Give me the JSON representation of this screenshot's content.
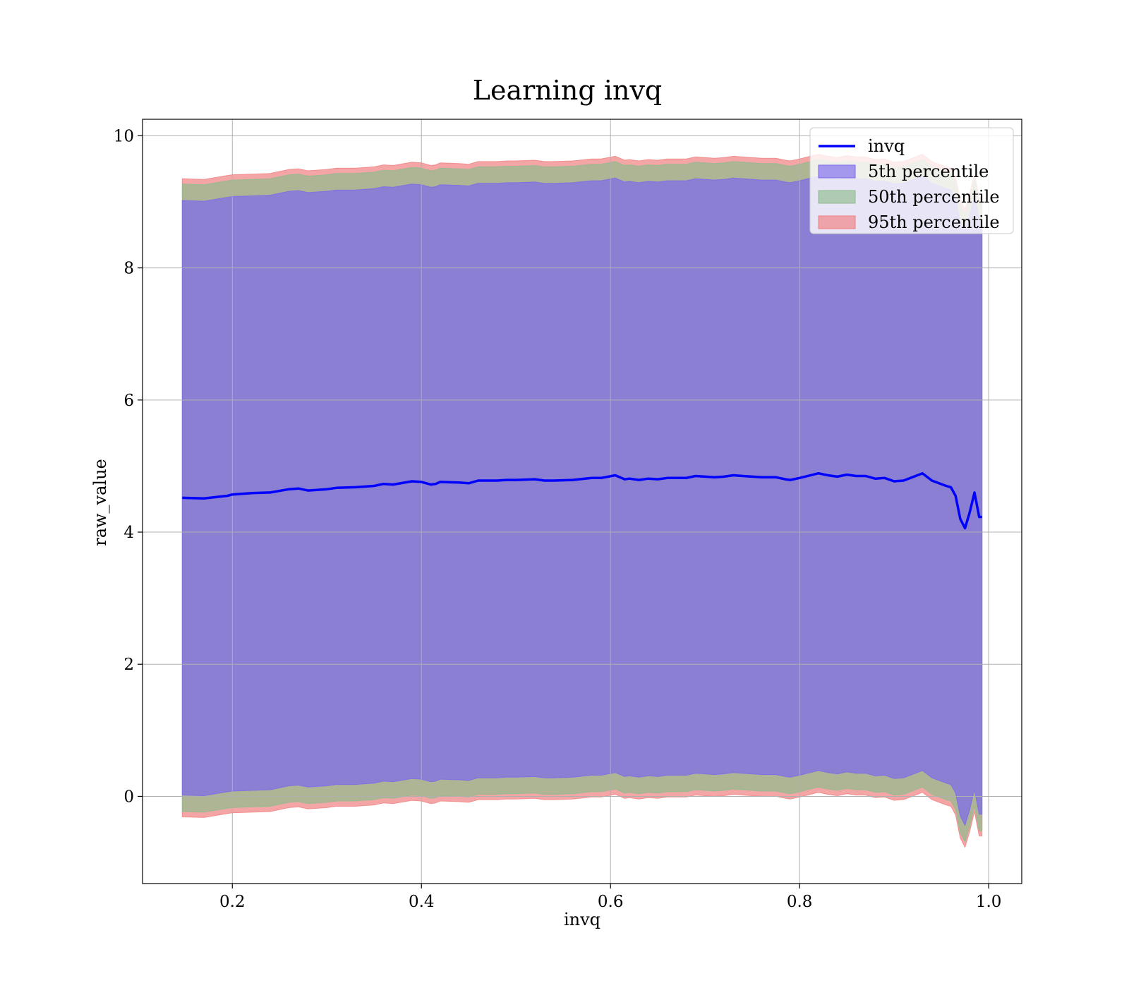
{
  "chart_data": {
    "type": "line",
    "title": "Learning invq",
    "xlabel": "invq",
    "ylabel": "raw_value",
    "xlim": [
      0.105,
      1.035
    ],
    "ylim": [
      -1.32,
      10.25
    ],
    "xticks": [
      0.2,
      0.4,
      0.6,
      0.8,
      1.0
    ],
    "xtick_labels": [
      "0.2",
      "0.4",
      "0.6",
      "0.8",
      "1.0"
    ],
    "yticks": [
      0,
      2,
      4,
      6,
      8,
      10
    ],
    "ytick_labels": [
      "0",
      "2",
      "4",
      "6",
      "8",
      "10"
    ],
    "grid": true,
    "legend_position": "upper right",
    "x": [
      0.147,
      0.17,
      0.195,
      0.2,
      0.22,
      0.24,
      0.26,
      0.27,
      0.28,
      0.3,
      0.31,
      0.33,
      0.35,
      0.36,
      0.37,
      0.39,
      0.4,
      0.41,
      0.415,
      0.42,
      0.44,
      0.45,
      0.46,
      0.48,
      0.49,
      0.5,
      0.52,
      0.53,
      0.54,
      0.56,
      0.58,
      0.59,
      0.605,
      0.615,
      0.62,
      0.63,
      0.64,
      0.65,
      0.66,
      0.68,
      0.69,
      0.7,
      0.71,
      0.72,
      0.73,
      0.74,
      0.76,
      0.775,
      0.785,
      0.79,
      0.8,
      0.82,
      0.83,
      0.84,
      0.85,
      0.86,
      0.87,
      0.88,
      0.89,
      0.9,
      0.91,
      0.93,
      0.94,
      0.955,
      0.96,
      0.965,
      0.97,
      0.975,
      0.98,
      0.985,
      0.99,
      0.993
    ],
    "series": [
      {
        "name": "invq",
        "color": "#0000ff",
        "y": [
          4.52,
          4.51,
          4.55,
          4.57,
          4.59,
          4.6,
          4.65,
          4.66,
          4.63,
          4.65,
          4.67,
          4.68,
          4.7,
          4.73,
          4.72,
          4.77,
          4.76,
          4.72,
          4.73,
          4.76,
          4.75,
          4.74,
          4.78,
          4.78,
          4.79,
          4.79,
          4.8,
          4.78,
          4.78,
          4.79,
          4.82,
          4.82,
          4.86,
          4.8,
          4.81,
          4.79,
          4.81,
          4.8,
          4.82,
          4.82,
          4.85,
          4.84,
          4.83,
          4.84,
          4.86,
          4.85,
          4.83,
          4.83,
          4.8,
          4.79,
          4.82,
          4.89,
          4.86,
          4.84,
          4.87,
          4.85,
          4.85,
          4.81,
          4.82,
          4.77,
          4.78,
          4.89,
          4.78,
          4.7,
          4.68,
          4.55,
          4.2,
          4.06,
          4.3,
          4.6,
          4.23,
          4.23
        ]
      }
    ],
    "bands": [
      {
        "name": "95th percentile",
        "color": "#f08080",
        "upper": [
          9.35,
          9.34,
          9.4,
          9.41,
          9.42,
          9.43,
          9.49,
          9.5,
          9.47,
          9.49,
          9.51,
          9.51,
          9.53,
          9.56,
          9.55,
          9.6,
          9.59,
          9.55,
          9.56,
          9.59,
          9.58,
          9.57,
          9.61,
          9.61,
          9.62,
          9.62,
          9.63,
          9.61,
          9.61,
          9.62,
          9.65,
          9.65,
          9.69,
          9.63,
          9.64,
          9.62,
          9.64,
          9.63,
          9.65,
          9.65,
          9.68,
          9.67,
          9.66,
          9.67,
          9.69,
          9.68,
          9.66,
          9.66,
          9.63,
          9.62,
          9.65,
          9.72,
          9.69,
          9.67,
          9.7,
          9.68,
          9.68,
          9.64,
          9.65,
          9.6,
          9.61,
          9.72,
          9.61,
          9.53,
          9.51,
          9.38,
          9.03,
          8.89,
          9.13,
          9.43,
          9.06,
          9.06
        ],
        "lower": [
          -0.31,
          -0.32,
          -0.26,
          -0.25,
          -0.24,
          -0.23,
          -0.17,
          -0.16,
          -0.19,
          -0.17,
          -0.15,
          -0.15,
          -0.13,
          -0.1,
          -0.11,
          -0.06,
          -0.07,
          -0.11,
          -0.1,
          -0.07,
          -0.08,
          -0.09,
          -0.05,
          -0.05,
          -0.04,
          -0.04,
          -0.03,
          -0.05,
          -0.05,
          -0.04,
          -0.01,
          -0.01,
          0.03,
          -0.03,
          -0.02,
          -0.04,
          -0.02,
          -0.03,
          -0.01,
          -0.01,
          0.02,
          0.01,
          0.0,
          0.01,
          0.03,
          0.02,
          0.0,
          0.0,
          -0.03,
          -0.04,
          -0.01,
          0.06,
          0.03,
          0.01,
          0.04,
          0.02,
          0.02,
          -0.02,
          -0.01,
          -0.06,
          -0.05,
          0.06,
          -0.05,
          -0.13,
          -0.15,
          -0.28,
          -0.63,
          -0.77,
          -0.53,
          -0.23,
          -0.6,
          -0.6
        ]
      },
      {
        "name": "50th percentile",
        "color": "#8fbc8f",
        "upper": [
          9.27,
          9.26,
          9.32,
          9.33,
          9.34,
          9.35,
          9.41,
          9.42,
          9.39,
          9.41,
          9.43,
          9.43,
          9.45,
          9.48,
          9.47,
          9.52,
          9.51,
          9.47,
          9.48,
          9.51,
          9.5,
          9.49,
          9.53,
          9.53,
          9.54,
          9.54,
          9.55,
          9.53,
          9.53,
          9.54,
          9.57,
          9.57,
          9.61,
          9.55,
          9.56,
          9.54,
          9.56,
          9.55,
          9.57,
          9.57,
          9.6,
          9.59,
          9.58,
          9.59,
          9.61,
          9.6,
          9.58,
          9.58,
          9.55,
          9.54,
          9.57,
          9.64,
          9.61,
          9.59,
          9.62,
          9.6,
          9.6,
          9.56,
          9.57,
          9.52,
          9.53,
          9.64,
          9.53,
          9.45,
          9.43,
          9.3,
          8.95,
          8.81,
          9.05,
          9.35,
          8.98,
          8.98
        ],
        "lower": [
          -0.23,
          -0.24,
          -0.18,
          -0.17,
          -0.16,
          -0.15,
          -0.09,
          -0.08,
          -0.11,
          -0.09,
          -0.07,
          -0.07,
          -0.05,
          -0.02,
          -0.03,
          0.02,
          0.01,
          -0.03,
          -0.02,
          0.01,
          0.0,
          -0.01,
          0.03,
          0.03,
          0.04,
          0.04,
          0.05,
          0.03,
          0.03,
          0.04,
          0.07,
          0.07,
          0.11,
          0.05,
          0.06,
          0.04,
          0.06,
          0.05,
          0.07,
          0.07,
          0.1,
          0.09,
          0.08,
          0.09,
          0.11,
          0.1,
          0.08,
          0.08,
          0.05,
          0.04,
          0.07,
          0.14,
          0.11,
          0.09,
          0.12,
          0.1,
          0.1,
          0.06,
          0.07,
          0.02,
          0.03,
          0.14,
          0.03,
          -0.05,
          -0.07,
          -0.2,
          -0.55,
          -0.69,
          -0.45,
          -0.15,
          -0.52,
          -0.52
        ]
      },
      {
        "name": "5th percentile",
        "color": "#7b68ee",
        "upper": [
          9.02,
          9.01,
          9.07,
          9.08,
          9.09,
          9.1,
          9.16,
          9.17,
          9.14,
          9.16,
          9.18,
          9.18,
          9.2,
          9.23,
          9.22,
          9.27,
          9.26,
          9.22,
          9.23,
          9.26,
          9.25,
          9.24,
          9.28,
          9.28,
          9.29,
          9.29,
          9.3,
          9.28,
          9.28,
          9.29,
          9.32,
          9.32,
          9.36,
          9.3,
          9.31,
          9.29,
          9.31,
          9.3,
          9.32,
          9.32,
          9.35,
          9.34,
          9.33,
          9.34,
          9.36,
          9.35,
          9.33,
          9.33,
          9.3,
          9.29,
          9.32,
          9.39,
          9.36,
          9.34,
          9.37,
          9.35,
          9.35,
          9.31,
          9.32,
          9.27,
          9.28,
          9.39,
          9.28,
          9.2,
          9.18,
          9.05,
          8.7,
          8.56,
          8.8,
          9.1,
          8.73,
          8.73
        ],
        "lower": [
          0.02,
          0.01,
          0.07,
          0.08,
          0.09,
          0.1,
          0.16,
          0.17,
          0.14,
          0.16,
          0.18,
          0.18,
          0.2,
          0.23,
          0.22,
          0.27,
          0.26,
          0.22,
          0.23,
          0.26,
          0.25,
          0.24,
          0.28,
          0.28,
          0.29,
          0.29,
          0.3,
          0.28,
          0.28,
          0.29,
          0.32,
          0.32,
          0.36,
          0.3,
          0.31,
          0.29,
          0.31,
          0.3,
          0.32,
          0.32,
          0.35,
          0.34,
          0.33,
          0.34,
          0.36,
          0.35,
          0.33,
          0.33,
          0.3,
          0.29,
          0.32,
          0.39,
          0.36,
          0.34,
          0.37,
          0.35,
          0.35,
          0.31,
          0.32,
          0.27,
          0.28,
          0.39,
          0.28,
          0.2,
          0.18,
          0.05,
          -0.3,
          -0.44,
          -0.2,
          0.1,
          -0.27,
          -0.27
        ]
      }
    ],
    "legend": [
      {
        "label": "invq",
        "kind": "line",
        "color": "#0000ff"
      },
      {
        "label": "5th percentile",
        "kind": "patch",
        "color": "#7b68ee"
      },
      {
        "label": "50th percentile",
        "kind": "patch",
        "color": "#8fbc8f"
      },
      {
        "label": "95th percentile",
        "kind": "patch",
        "color": "#f08080"
      }
    ]
  }
}
